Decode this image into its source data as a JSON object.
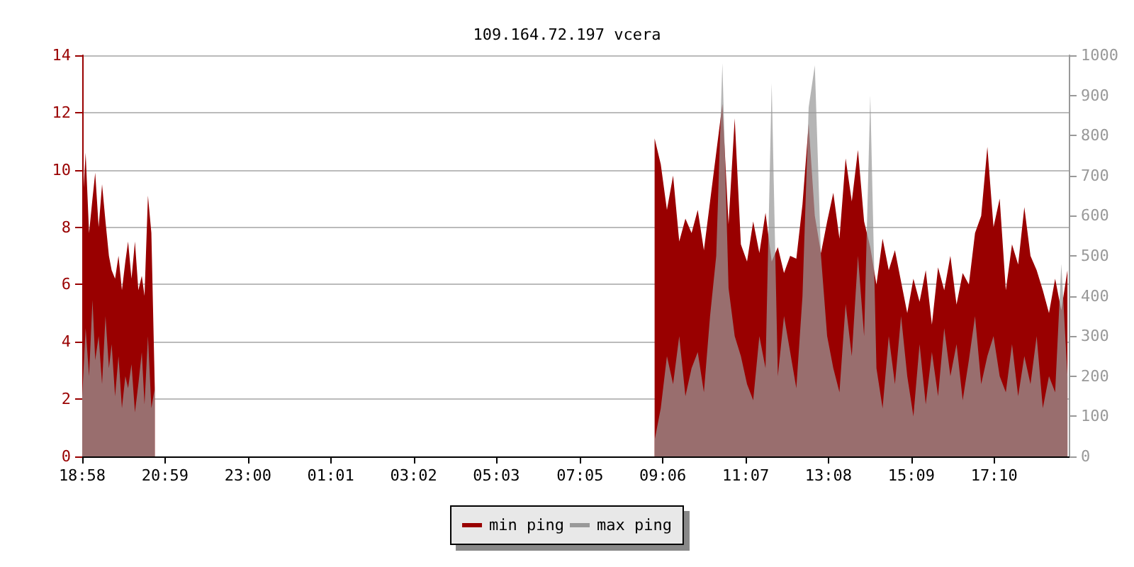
{
  "chart_data": {
    "type": "area",
    "title": "109.164.72.197 vcera",
    "x": [
      "--01-01T18:58",
      "--01-01T19:03",
      "--01-01T19:08",
      "--01-01T19:13",
      "--01-01T19:17",
      "--01-01T19:22",
      "--01-01T19:27",
      "--01-01T19:32",
      "--01-01T19:37",
      "--01-01T19:41",
      "--01-01T19:46",
      "--01-01T19:51",
      "--01-01T19:56",
      "--01-01T20:01",
      "--01-01T20:05",
      "--01-01T20:10",
      "--01-01T20:15",
      "--01-01T20:20",
      "--01-01T20:25",
      "--01-01T20:29",
      "--01-01T20:34",
      "--01-01T20:39",
      "--01-01T20:44",
      "--01-02T02:48",
      "--01-02T08:54",
      "--01-02T09:03",
      "--01-02T09:12",
      "--01-02T09:21",
      "--01-02T09:30",
      "--01-02T09:39",
      "--01-02T09:48",
      "--01-02T09:57",
      "--01-02T10:06",
      "--01-02T10:15",
      "--01-02T10:24",
      "--01-02T10:33",
      "--01-02T10:42",
      "--01-02T10:51",
      "--01-02T11:00",
      "--01-02T11:09",
      "--01-02T11:18",
      "--01-02T11:27",
      "--01-02T11:36",
      "--01-02T11:45",
      "--01-02T11:54",
      "--01-02T12:03",
      "--01-02T12:12",
      "--01-02T12:21",
      "--01-02T12:30",
      "--01-02T12:39",
      "--01-02T12:48",
      "--01-02T12:57",
      "--01-02T13:06",
      "--01-02T13:15",
      "--01-02T13:24",
      "--01-02T13:33",
      "--01-02T13:42",
      "--01-02T13:51",
      "--01-02T14:00",
      "--01-02T14:09",
      "--01-02T14:18",
      "--01-02T14:27",
      "--01-02T14:36",
      "--01-02T14:45",
      "--01-02T14:54",
      "--01-02T15:03",
      "--01-02T15:12",
      "--01-02T15:21",
      "--01-02T15:30",
      "--01-02T15:39",
      "--01-02T15:48",
      "--01-02T15:57",
      "--01-02T16:06",
      "--01-02T16:15",
      "--01-02T16:24",
      "--01-02T16:33",
      "--01-02T16:42",
      "--01-02T16:51",
      "--01-02T17:00",
      "--01-02T17:09",
      "--01-02T17:18",
      "--01-02T17:27",
      "--01-02T17:36",
      "--01-02T17:45",
      "--01-02T17:54",
      "--01-02T18:03",
      "--01-02T18:12",
      "--01-02T18:21",
      "--01-02T18:30",
      "--01-02T18:39",
      "--01-02T18:48",
      "--01-02T18:57"
    ],
    "xlim": [
      "--01-01T18:58",
      "--01-02T19:00"
    ],
    "xticks": [
      {
        "value": "--01-01T18:58",
        "label": "18:58"
      },
      {
        "value": "--01-01T20:59",
        "label": "20:59"
      },
      {
        "value": "--01-01T23:00",
        "label": "23:00"
      },
      {
        "value": "--01-02T01:01",
        "label": "01:01"
      },
      {
        "value": "--01-02T03:02",
        "label": "03:02"
      },
      {
        "value": "--01-02T05:03",
        "label": "05:03"
      },
      {
        "value": "--01-02T07:05",
        "label": "07:05"
      },
      {
        "value": "--01-02T09:06",
        "label": "09:06"
      },
      {
        "value": "--01-02T11:07",
        "label": "11:07"
      },
      {
        "value": "--01-02T13:08",
        "label": "13:08"
      },
      {
        "value": "--01-02T15:09",
        "label": "15:09"
      },
      {
        "value": "--01-02T17:10",
        "label": "17:10"
      }
    ],
    "ylim": [
      0,
      14
    ],
    "yticks": [
      0,
      2,
      4,
      6,
      8,
      10,
      12,
      14
    ],
    "y2lim": [
      0,
      1000
    ],
    "y2ticks": [
      0,
      100,
      200,
      300,
      400,
      500,
      600,
      700,
      800,
      900,
      1000
    ],
    "grid": "y",
    "legend": "bottom",
    "series": [
      {
        "name": "min ping",
        "color": "#990000",
        "values": [
          8.5,
          10.6,
          7.8,
          9.0,
          9.9,
          8.0,
          9.5,
          8.2,
          7.0,
          6.5,
          6.2,
          7.0,
          5.8,
          6.8,
          7.5,
          6.2,
          7.5,
          5.8,
          6.3,
          5.6,
          9.1,
          7.8,
          2.4,
          null,
          11.1,
          10.2,
          8.6,
          9.8,
          7.5,
          8.3,
          7.8,
          8.6,
          7.2,
          8.9,
          10.6,
          12.3,
          8.1,
          11.8,
          7.4,
          6.8,
          8.2,
          7.1,
          8.5,
          6.8,
          7.3,
          6.4,
          7.0,
          6.9,
          8.8,
          11.6,
          8.4,
          7.1,
          8.2,
          9.2,
          7.6,
          10.4,
          8.9,
          10.7,
          8.2,
          7.3,
          6.0,
          7.6,
          6.5,
          7.2,
          6.1,
          5.0,
          6.2,
          5.4,
          6.5,
          4.6,
          6.6,
          5.8,
          7.0,
          5.3,
          6.4,
          6.0,
          7.8,
          8.4,
          10.8,
          8.0,
          9.0,
          5.8,
          7.4,
          6.7,
          8.7,
          7.0,
          6.5,
          5.8,
          5.0,
          6.2,
          5.1,
          6.5
        ]
      },
      {
        "name": "max ping",
        "color": "#999999",
        "axis": "y2",
        "values": [
          150,
          320,
          200,
          390,
          240,
          300,
          180,
          350,
          220,
          280,
          150,
          250,
          120,
          200,
          170,
          230,
          110,
          180,
          260,
          130,
          300,
          120,
          170,
          null,
          40,
          120,
          250,
          180,
          300,
          150,
          220,
          260,
          160,
          350,
          500,
          980,
          420,
          300,
          250,
          180,
          140,
          300,
          220,
          930,
          200,
          350,
          260,
          170,
          400,
          870,
          975,
          500,
          300,
          220,
          160,
          380,
          250,
          500,
          300,
          900,
          220,
          120,
          300,
          180,
          350,
          200,
          100,
          280,
          130,
          260,
          150,
          320,
          200,
          280,
          140,
          240,
          350,
          180,
          250,
          300,
          200,
          160,
          280,
          150,
          250,
          180,
          300,
          120,
          200,
          160,
          480,
          200
        ]
      }
    ]
  }
}
